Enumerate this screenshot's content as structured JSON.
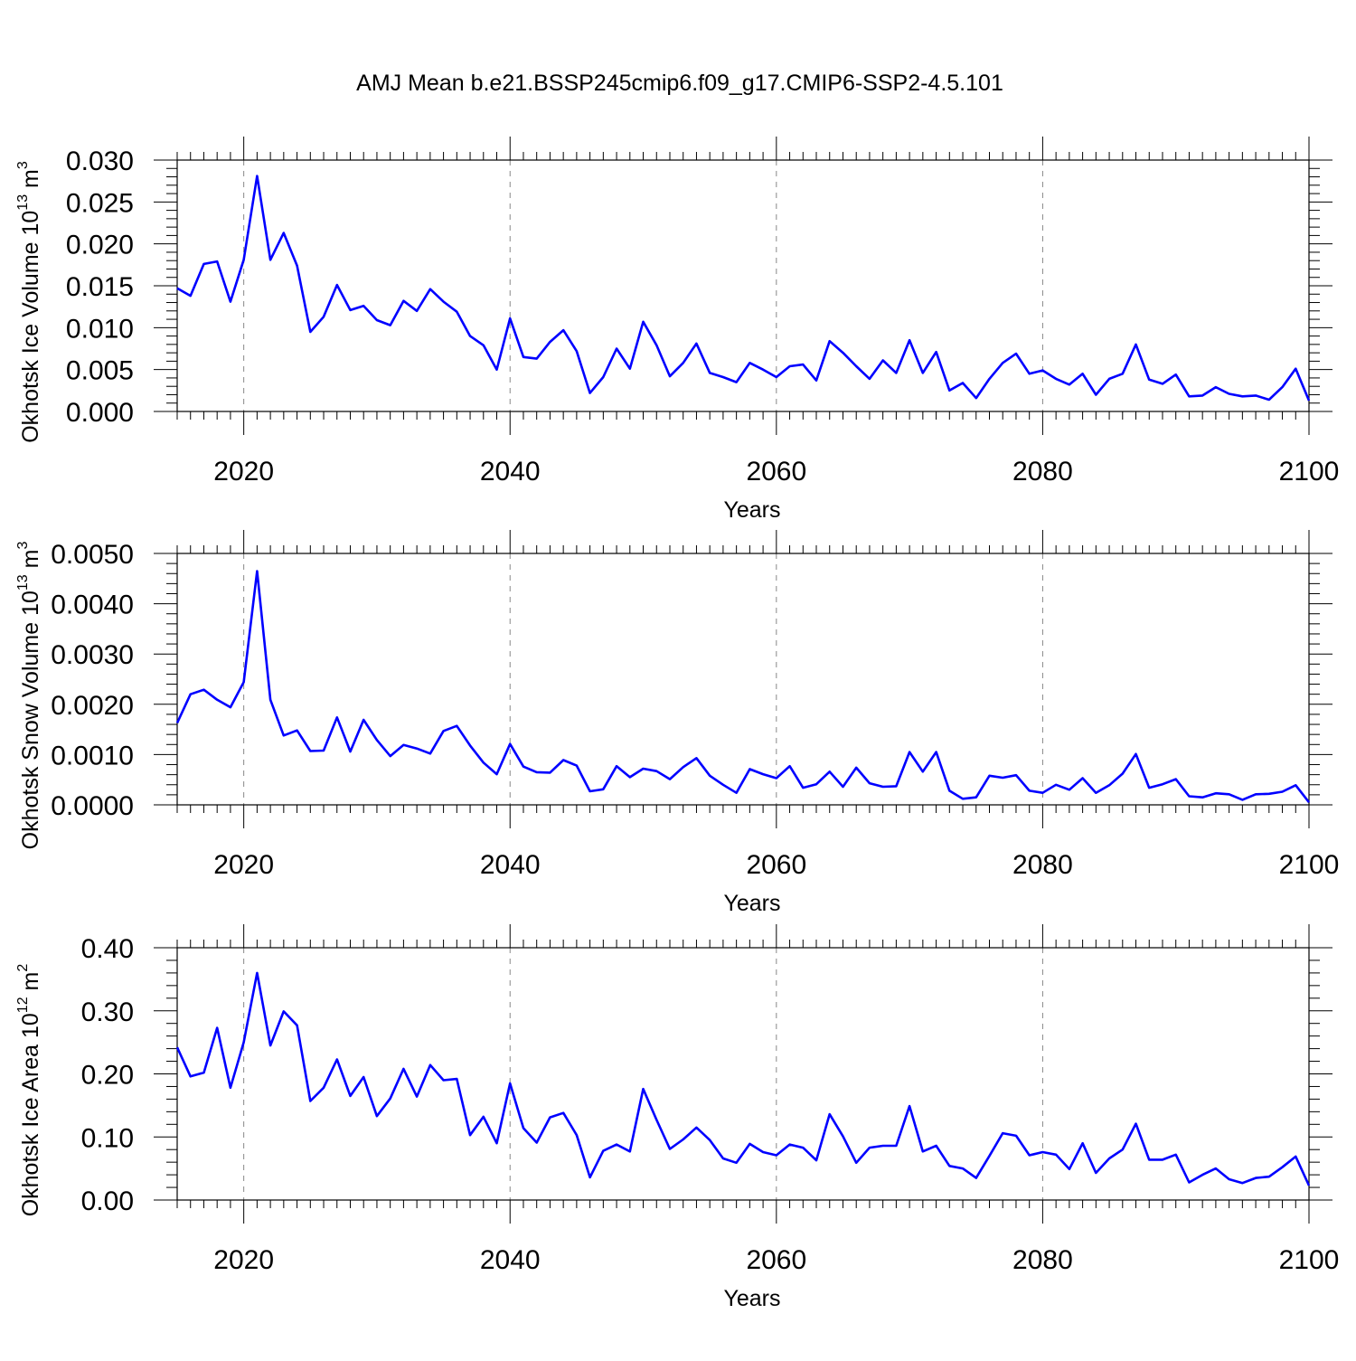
{
  "title": "AMJ Mean b.e21.BSSP245cmip6.f09_g17.CMIP6-SSP2-4.5.101",
  "colors": {
    "line": "#0000ff",
    "frame": "#000000",
    "grid": "#888888"
  },
  "chart_data": [
    {
      "type": "line",
      "xlabel": "Years",
      "ylabel": {
        "base": "Okhotsk Ice Volume 10",
        "exp": "13",
        "unit": " m",
        "unit_exp": "3"
      },
      "xlim": [
        2015,
        2100
      ],
      "ylim": [
        0,
        0.03
      ],
      "xticks": [
        2020,
        2040,
        2060,
        2080,
        2100
      ],
      "xtick_labels": [
        "2020",
        "2040",
        "2060",
        "2080",
        "2100"
      ],
      "yticks": [
        0,
        0.005,
        0.01,
        0.015,
        0.02,
        0.025,
        0.03
      ],
      "ytick_labels": [
        "0.000",
        "0.005",
        "0.010",
        "0.015",
        "0.020",
        "0.025",
        "0.030"
      ],
      "grid": "vertical dashed at major x ticks",
      "x_start": 2015,
      "values": [
        0.0147,
        0.0138,
        0.0176,
        0.0179,
        0.0131,
        0.0181,
        0.0281,
        0.0181,
        0.0213,
        0.0174,
        0.0095,
        0.0113,
        0.0151,
        0.0121,
        0.0126,
        0.0109,
        0.0103,
        0.0132,
        0.012,
        0.0146,
        0.0131,
        0.0119,
        0.009,
        0.0079,
        0.005,
        0.0111,
        0.0065,
        0.0063,
        0.0083,
        0.0097,
        0.0072,
        0.0022,
        0.0041,
        0.0075,
        0.0051,
        0.0107,
        0.0079,
        0.0042,
        0.0058,
        0.0081,
        0.0046,
        0.0041,
        0.0035,
        0.0058,
        0.005,
        0.0041,
        0.0054,
        0.0056,
        0.0037,
        0.0084,
        0.007,
        0.0054,
        0.0039,
        0.0061,
        0.0046,
        0.0085,
        0.0046,
        0.0071,
        0.0025,
        0.0034,
        0.0016,
        0.0039,
        0.0058,
        0.0069,
        0.0045,
        0.0049,
        0.0039,
        0.0032,
        0.0045,
        0.002,
        0.0039,
        0.0045,
        0.008,
        0.0038,
        0.0033,
        0.0044,
        0.0018,
        0.0019,
        0.0029,
        0.0021,
        0.0018,
        0.0019,
        0.0014,
        0.0029,
        0.0051,
        0.0013
      ]
    },
    {
      "type": "line",
      "xlabel": "Years",
      "ylabel": {
        "base": "Okhotsk Snow Volume 10",
        "exp": "13",
        "unit": " m",
        "unit_exp": "3"
      },
      "xlim": [
        2015,
        2100
      ],
      "ylim": [
        0,
        0.005
      ],
      "xticks": [
        2020,
        2040,
        2060,
        2080,
        2100
      ],
      "xtick_labels": [
        "2020",
        "2040",
        "2060",
        "2080",
        "2100"
      ],
      "yticks": [
        0,
        0.001,
        0.002,
        0.003,
        0.004,
        0.005
      ],
      "ytick_labels": [
        "0.0000",
        "0.0010",
        "0.0020",
        "0.0030",
        "0.0040",
        "0.0050"
      ],
      "grid": "vertical dashed at major x ticks",
      "x_start": 2015,
      "values": [
        0.00163,
        0.0022,
        0.00229,
        0.00209,
        0.00194,
        0.00244,
        0.00465,
        0.00209,
        0.00138,
        0.00148,
        0.00107,
        0.00108,
        0.00174,
        0.00106,
        0.00169,
        0.00129,
        0.00097,
        0.00119,
        0.00112,
        0.00102,
        0.00147,
        0.00157,
        0.00118,
        0.00084,
        0.00061,
        0.00121,
        0.00076,
        0.00065,
        0.00064,
        0.00089,
        0.00078,
        0.00027,
        0.00031,
        0.00077,
        0.00055,
        0.00072,
        0.00067,
        0.00051,
        0.00075,
        0.00093,
        0.00058,
        0.0004,
        0.00024,
        0.00071,
        0.00061,
        0.00053,
        0.00077,
        0.00034,
        0.00041,
        0.00066,
        0.00036,
        0.00074,
        0.00043,
        0.00036,
        0.00037,
        0.00105,
        0.00066,
        0.00105,
        0.00028,
        0.00012,
        0.00015,
        0.00058,
        0.00054,
        0.00059,
        0.00028,
        0.00024,
        0.0004,
        0.0003,
        0.00053,
        0.00024,
        0.00039,
        0.00062,
        0.00101,
        0.00034,
        0.00041,
        0.00051,
        0.00017,
        0.00015,
        0.00023,
        0.00021,
        0.0001,
        0.00021,
        0.00022,
        0.00026,
        0.00039,
        5e-05
      ]
    },
    {
      "type": "line",
      "xlabel": "Years",
      "ylabel": {
        "base": "Okhotsk Ice Area 10",
        "exp": "12",
        "unit": " m",
        "unit_exp": "2"
      },
      "xlim": [
        2015,
        2100
      ],
      "ylim": [
        0,
        0.4
      ],
      "xticks": [
        2020,
        2040,
        2060,
        2080,
        2100
      ],
      "xtick_labels": [
        "2020",
        "2040",
        "2060",
        "2080",
        "2100"
      ],
      "yticks": [
        0,
        0.1,
        0.2,
        0.3,
        0.4
      ],
      "ytick_labels": [
        "0.00",
        "0.10",
        "0.20",
        "0.30",
        "0.40"
      ],
      "grid": "vertical dashed at major x ticks",
      "x_start": 2015,
      "values": [
        0.242,
        0.196,
        0.202,
        0.273,
        0.178,
        0.25,
        0.36,
        0.245,
        0.299,
        0.277,
        0.157,
        0.178,
        0.223,
        0.165,
        0.195,
        0.133,
        0.161,
        0.208,
        0.164,
        0.214,
        0.19,
        0.192,
        0.103,
        0.132,
        0.09,
        0.185,
        0.114,
        0.091,
        0.131,
        0.138,
        0.103,
        0.036,
        0.078,
        0.088,
        0.077,
        0.176,
        0.127,
        0.081,
        0.096,
        0.115,
        0.095,
        0.066,
        0.059,
        0.089,
        0.076,
        0.071,
        0.088,
        0.083,
        0.063,
        0.136,
        0.101,
        0.059,
        0.083,
        0.086,
        0.086,
        0.149,
        0.077,
        0.086,
        0.054,
        0.05,
        0.035,
        0.07,
        0.106,
        0.102,
        0.071,
        0.076,
        0.072,
        0.049,
        0.09,
        0.043,
        0.066,
        0.08,
        0.121,
        0.064,
        0.064,
        0.072,
        0.028,
        0.04,
        0.05,
        0.033,
        0.027,
        0.035,
        0.037,
        0.052,
        0.069,
        0.023
      ]
    }
  ]
}
